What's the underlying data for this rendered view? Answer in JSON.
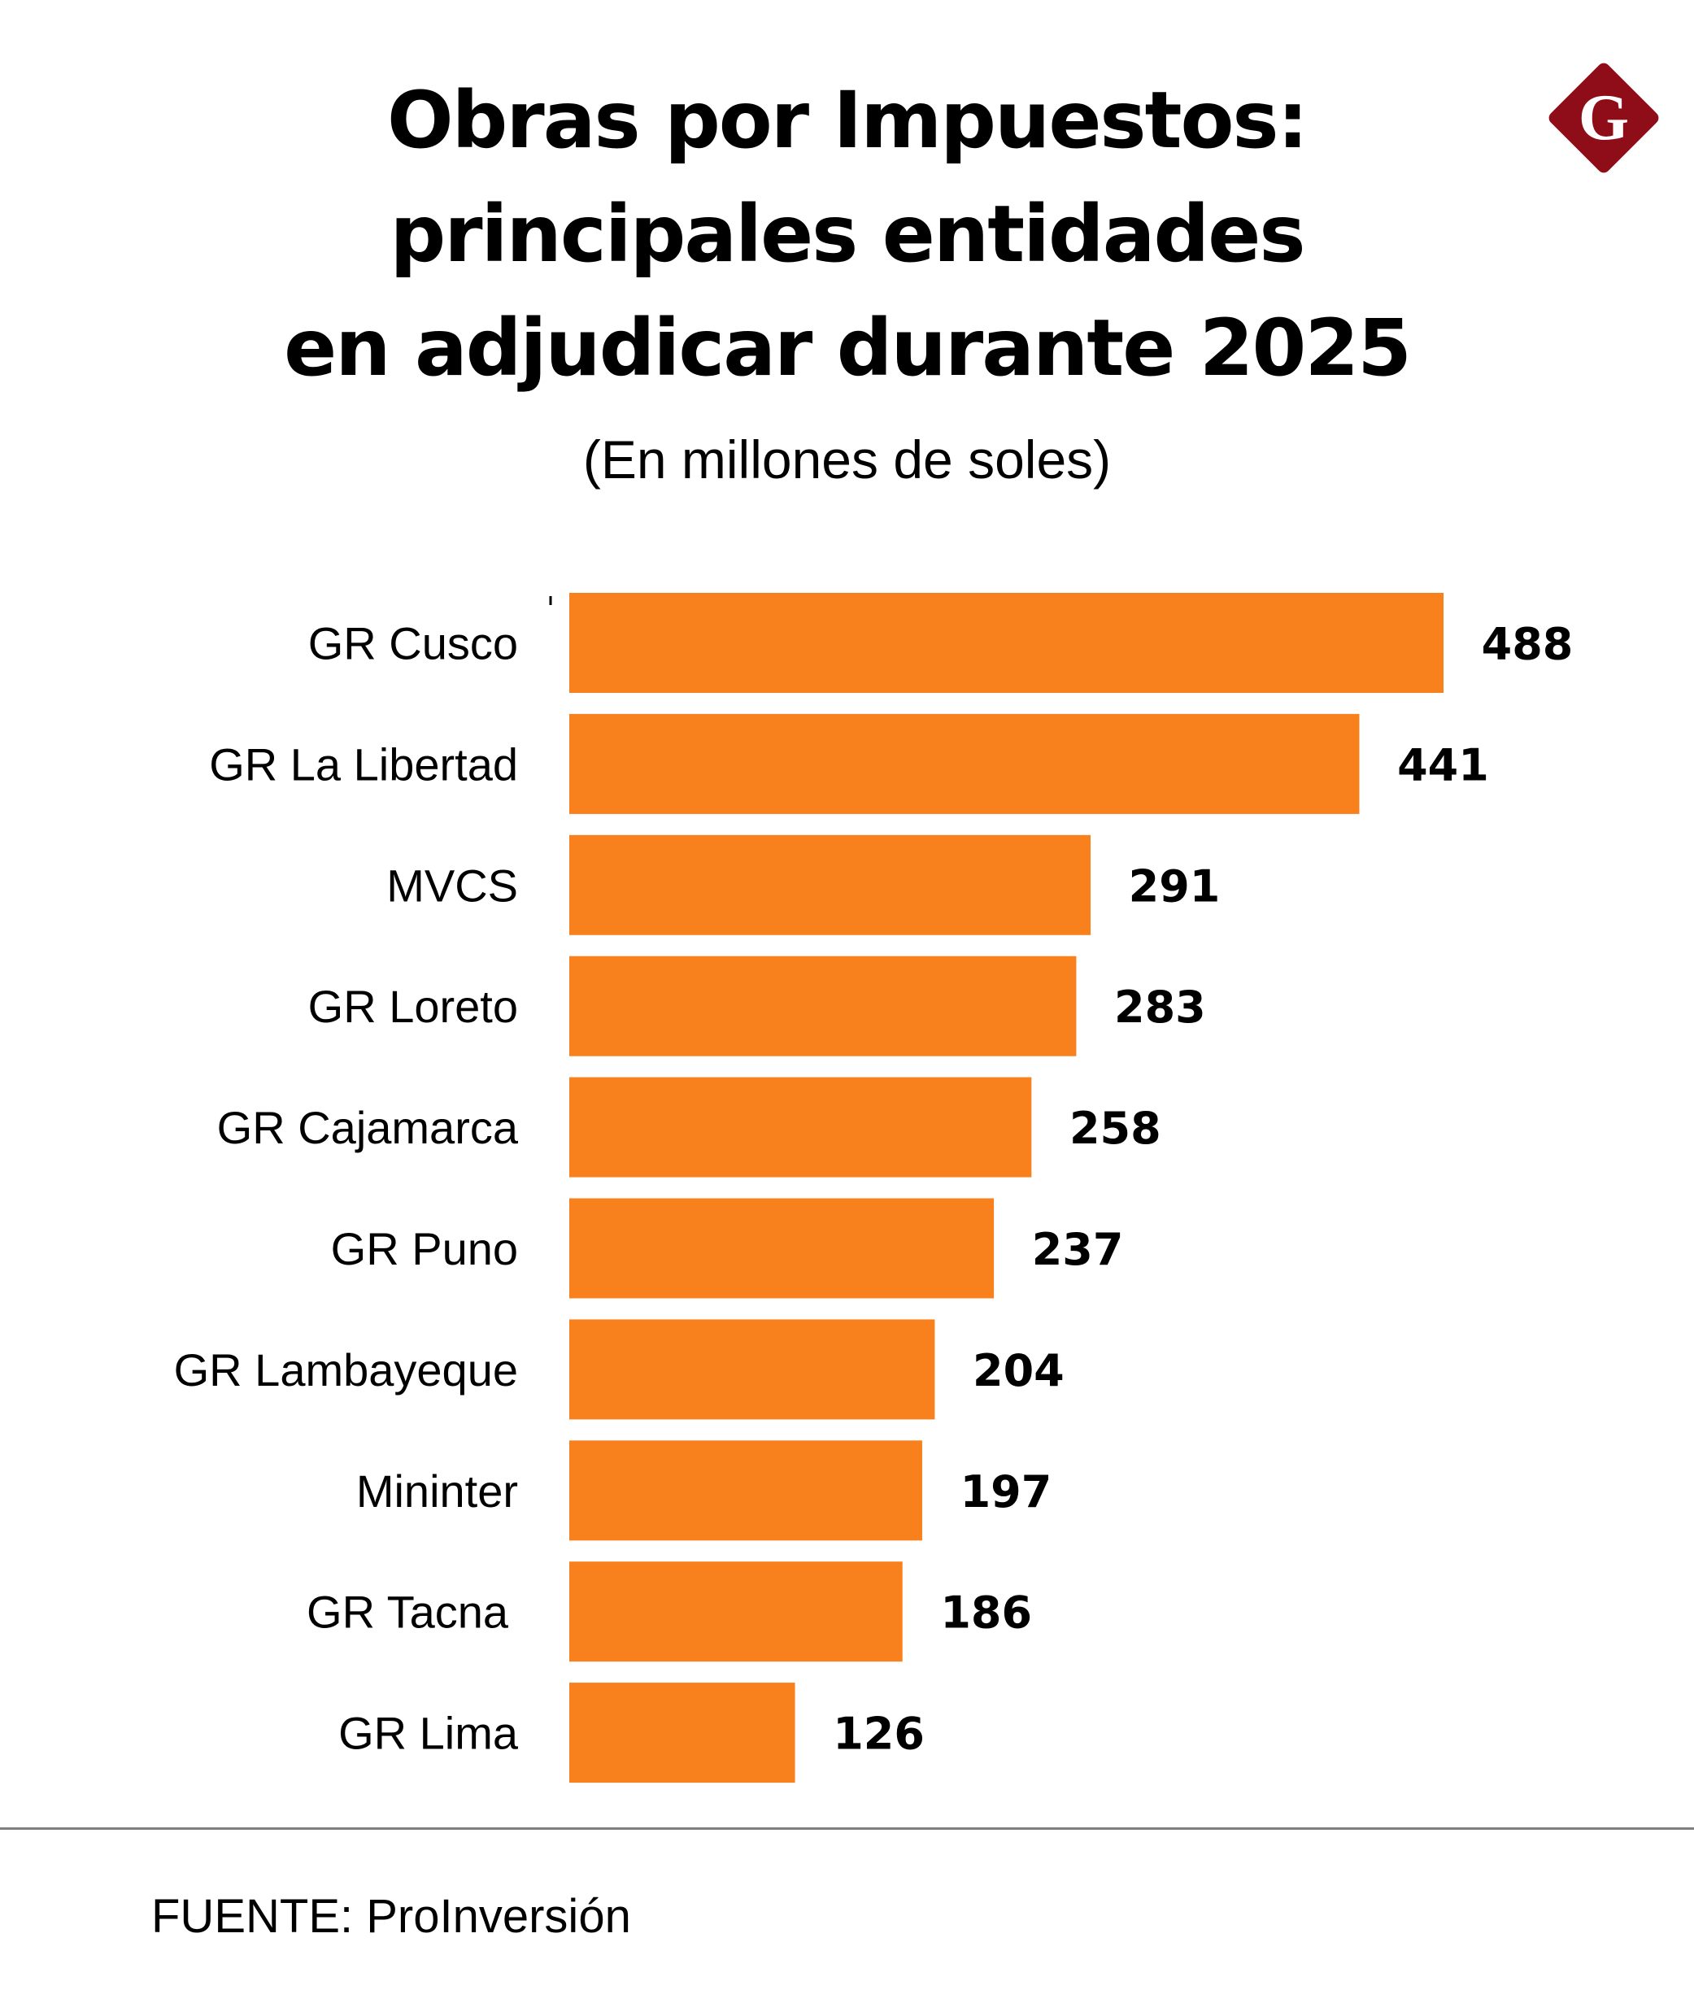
{
  "header": {
    "title_lines": [
      "Obras por Impuestos:",
      "principales entidades",
      "en adjudicar durante 2025"
    ],
    "subtitle": "(En millones de soles)"
  },
  "logo": {
    "icon": "gestion-g-diamond-icon",
    "letter": "G",
    "color": "#8f0d18"
  },
  "footer": {
    "source": "FUENTE: ProInversión"
  },
  "colors": {
    "bar": "#f9811d",
    "text": "#000000",
    "divider": "#7f7f7f"
  },
  "chart_data": {
    "type": "bar",
    "orientation": "horizontal",
    "title": "Obras por Impuestos: principales entidades en adjudicar durante 2025",
    "subtitle": "(En millones de soles)",
    "xlabel": "",
    "ylabel": "",
    "unit": "millones de soles",
    "categories": [
      "GR Cusco",
      "GR La Libertad",
      "MVCS",
      "GR Loreto",
      "GR Cajamarca",
      "GR Puno",
      "GR Lambayeque",
      "Mininter",
      "GR Tacna",
      "GR Lima"
    ],
    "values": [
      488,
      441,
      291,
      283,
      258,
      237,
      204,
      197,
      186,
      126
    ],
    "xlim": [
      0,
      488
    ],
    "grid": false,
    "legend": "none",
    "data_labels": true,
    "source": "FUENTE: ProInversión"
  }
}
